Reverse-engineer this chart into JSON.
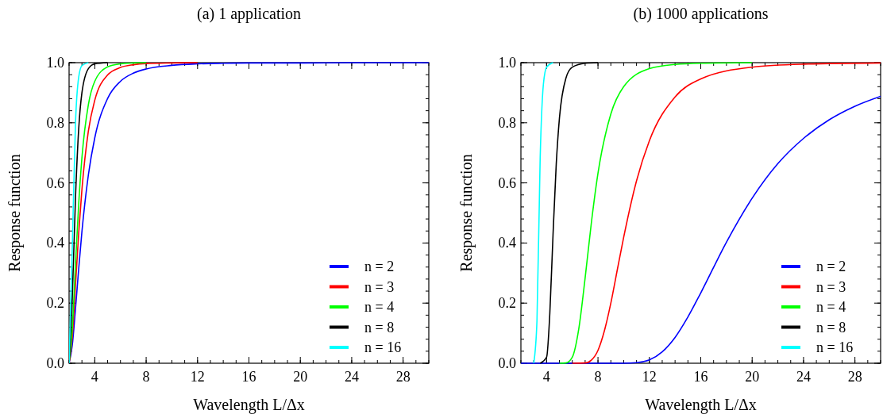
{
  "chart_data": [
    {
      "type": "line",
      "title": "(a) 1 application",
      "xlabel": "Wavelength L/Δx",
      "ylabel": "Response function",
      "xlim": [
        2,
        30
      ],
      "ylim": [
        0,
        1
      ],
      "xticks": [
        4,
        8,
        12,
        16,
        20,
        24,
        28
      ],
      "yticks": [
        {
          "value": 0,
          "label": "0.0"
        },
        {
          "value": 0.2,
          "label": "0.2"
        },
        {
          "value": 0.4,
          "label": "0.4"
        },
        {
          "value": 0.6,
          "label": "0.6"
        },
        {
          "value": 0.8,
          "label": "0.8"
        },
        {
          "value": 1,
          "label": "1.0"
        }
      ],
      "grid": false,
      "legend": "bottom right",
      "line_style": "solid",
      "marker": "none",
      "x": [
        2,
        2.25,
        2.5,
        2.75,
        3,
        3.5,
        4,
        5,
        6,
        7,
        8,
        10,
        12,
        14,
        16,
        20,
        24,
        30
      ],
      "series": [
        {
          "name": "n = 2",
          "color": "#0000ff",
          "values": [
            0,
            0.06,
            0.182,
            0.315,
            0.438,
            0.626,
            0.75,
            0.881,
            0.938,
            0.965,
            0.979,
            0.991,
            0.996,
            0.998,
            0.999,
            0.999,
            1,
            1
          ]
        },
        {
          "name": "n = 3",
          "color": "#ff0000",
          "values": [
            0,
            0.088,
            0.26,
            0.434,
            0.578,
            0.772,
            0.875,
            0.959,
            0.984,
            0.993,
            0.997,
            0.999,
            1,
            null,
            null,
            null,
            null,
            null
          ]
        },
        {
          "name": "n = 4",
          "color": "#00ff00",
          "values": [
            0,
            0.115,
            0.331,
            0.531,
            0.684,
            0.86,
            0.938,
            0.986,
            0.996,
            0.999,
            1,
            null,
            null,
            null,
            null,
            null,
            null,
            null
          ]
        },
        {
          "name": "n = 8",
          "color": "#000000",
          "values": [
            0,
            0.218,
            0.552,
            0.78,
            0.9,
            0.98,
            0.996,
            1,
            null,
            null,
            null,
            null,
            null,
            null,
            null,
            null,
            null,
            null
          ]
        },
        {
          "name": "n = 16",
          "color": "#00ffff",
          "values": [
            0,
            0.388,
            0.8,
            0.952,
            0.99,
            1,
            null,
            null,
            null,
            null,
            null,
            null,
            null,
            null,
            null,
            null,
            null,
            null
          ]
        }
      ]
    },
    {
      "type": "line",
      "title": "(b) 1000 applications",
      "xlabel": "Wavelength L/Δx",
      "ylabel": "Response function",
      "xlim": [
        2,
        30
      ],
      "ylim": [
        0,
        1
      ],
      "xticks": [
        4,
        8,
        12,
        16,
        20,
        24,
        28
      ],
      "yticks": [
        {
          "value": 0,
          "label": "0.0"
        },
        {
          "value": 0.2,
          "label": "0.2"
        },
        {
          "value": 0.4,
          "label": "0.4"
        },
        {
          "value": 0.6,
          "label": "0.6"
        },
        {
          "value": 0.8,
          "label": "0.8"
        },
        {
          "value": 1,
          "label": "1.0"
        }
      ],
      "grid": false,
      "legend": "bottom right",
      "line_style": "solid",
      "marker": "none",
      "series": [
        {
          "name": "n = 2",
          "color": "#0000ff",
          "x": [
            2,
            8,
            10,
            11,
            12,
            13,
            14,
            15,
            16,
            18,
            20,
            22,
            24,
            26,
            28,
            30
          ],
          "values": [
            0,
            0,
            0,
            0.002,
            0.011,
            0.038,
            0.086,
            0.154,
            0.234,
            0.403,
            0.549,
            0.664,
            0.748,
            0.81,
            0.855,
            0.888
          ]
        },
        {
          "name": "n = 3",
          "color": "#ff0000",
          "x": [
            6,
            7,
            7.5,
            8,
            8.5,
            9,
            9.5,
            10,
            11,
            12,
            14,
            16,
            20,
            24,
            30
          ],
          "values": [
            0,
            0.001,
            0.011,
            0.043,
            0.108,
            0.2,
            0.31,
            0.419,
            0.607,
            0.74,
            0.886,
            0.946,
            0.985,
            0.995,
            0.999
          ]
        },
        {
          "name": "n = 4",
          "color": "#00ff00",
          "x": [
            5,
            5.5,
            6,
            6.5,
            7,
            7.5,
            8,
            9,
            10,
            12,
            14,
            16,
            20
          ],
          "values": [
            0,
            0.001,
            0.02,
            0.113,
            0.284,
            0.473,
            0.632,
            0.829,
            0.92,
            0.98,
            0.994,
            0.998,
            1
          ]
        },
        {
          "name": "n = 8",
          "color": "#000000",
          "x": [
            3.5,
            4,
            4.25,
            4.5,
            4.75,
            5,
            5.5,
            6,
            7,
            8
          ],
          "values": [
            0,
            0.02,
            0.165,
            0.427,
            0.662,
            0.816,
            0.948,
            0.985,
            0.998,
            1
          ]
        },
        {
          "name": "n = 16",
          "color": "#00ffff",
          "x": [
            3,
            3.25,
            3.5,
            3.75,
            4,
            4.5
          ],
          "values": [
            0,
            0.141,
            0.684,
            0.928,
            0.985,
            1
          ]
        }
      ]
    }
  ]
}
